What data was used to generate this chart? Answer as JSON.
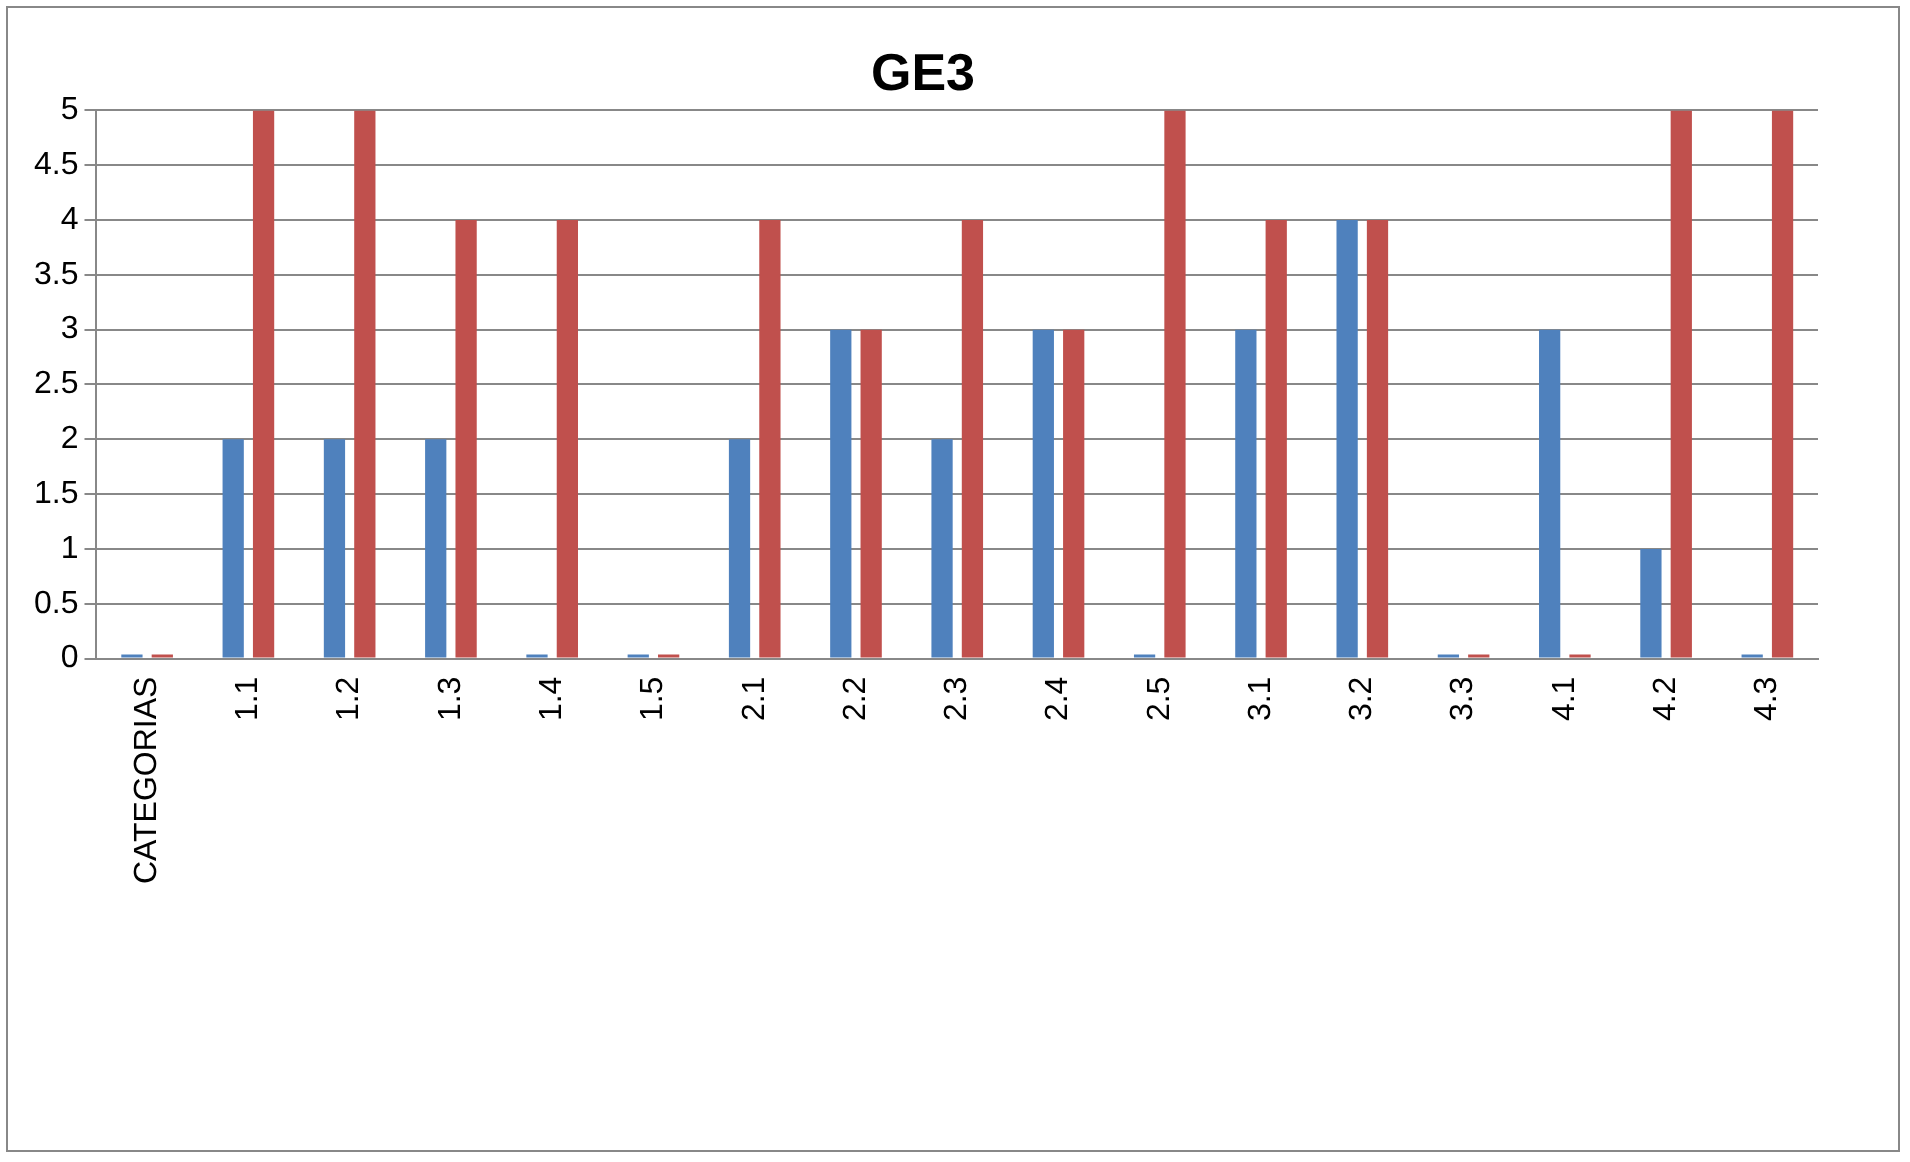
{
  "chart_data": {
    "type": "bar",
    "title": "GE3",
    "categories": [
      "CATEGORIAS",
      "1.1",
      "1.2",
      "1.3",
      "1.4",
      "1.5",
      "2.1",
      "2.2",
      "2.3",
      "2.4",
      "2.5",
      "3.1",
      "3.2",
      "3.3",
      "4.1",
      "4.2",
      "4.3"
    ],
    "series": [
      {
        "color": "#4f81bd",
        "values": [
          0,
          2,
          2,
          2,
          0,
          0,
          2,
          3,
          2,
          3,
          0,
          3,
          4,
          0,
          3,
          1,
          0
        ]
      },
      {
        "color": "#c0504d",
        "values": [
          0,
          5,
          5,
          4,
          4,
          0,
          4,
          3,
          4,
          3,
          5,
          4,
          4,
          0,
          0,
          5,
          5
        ]
      }
    ],
    "ylim": [
      0,
      5
    ],
    "yticks": [
      0,
      0.5,
      1,
      1.5,
      2,
      2.5,
      3,
      3.5,
      4,
      4.5,
      5
    ],
    "grid": "y",
    "legend": false
  }
}
